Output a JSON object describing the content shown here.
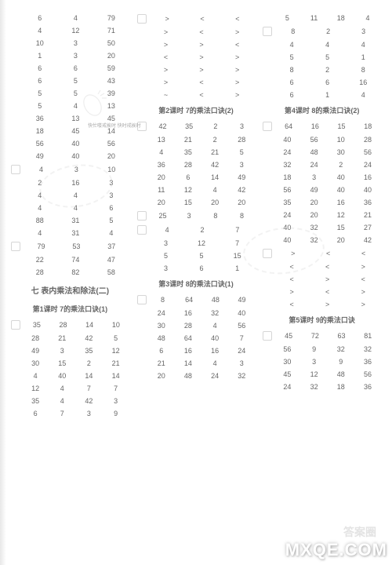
{
  "col1": {
    "rows": [
      [
        "6",
        "4",
        "79"
      ],
      [
        "4",
        "12",
        "71"
      ],
      [
        "10",
        "3",
        "50"
      ],
      [
        "1",
        "3",
        "20"
      ],
      [
        "6",
        "6",
        "59"
      ],
      [
        "6",
        "5",
        "43"
      ],
      [
        "5",
        "5",
        "39"
      ],
      [
        "5",
        "4",
        "13"
      ],
      [
        "36",
        "13",
        "45"
      ],
      [
        "18",
        "45",
        "14"
      ],
      [
        "56",
        "40",
        "56"
      ],
      [
        "49",
        "40",
        "20"
      ],
      [
        "4",
        "3",
        "10"
      ],
      [
        "2",
        "16",
        "3"
      ],
      [
        "4",
        "4",
        "3"
      ],
      [
        "4",
        "4",
        "6"
      ],
      [
        "88",
        "31",
        "5"
      ],
      [
        "4",
        "31",
        "4"
      ],
      [
        "79",
        "53",
        "37"
      ],
      [
        "22",
        "74",
        "47"
      ],
      [
        "28",
        "82",
        "58"
      ]
    ],
    "section": "七 表内乘法和除法(二)",
    "title": "第1课时 7的乘法口诀(1)",
    "rows2": [
      [
        "35",
        "28",
        "14",
        "10"
      ],
      [
        "28",
        "21",
        "42",
        "5"
      ],
      [
        "49",
        "3",
        "35",
        "12"
      ],
      [
        "30",
        "15",
        "2",
        "21"
      ],
      [
        "4",
        "40",
        "14",
        "14"
      ],
      [
        "12",
        "4",
        "7",
        "7"
      ],
      [
        "35",
        "4",
        "42",
        "3"
      ],
      [
        "6",
        "7",
        "3",
        "9"
      ]
    ]
  },
  "col2": {
    "sym1": [
      [
        ">",
        "<",
        "<"
      ],
      [
        ">",
        "<",
        ">"
      ],
      [
        ">",
        ">",
        "<"
      ],
      [
        "<",
        ">",
        ">"
      ],
      [
        ">",
        ">",
        ">"
      ],
      [
        ">",
        "<",
        ">"
      ],
      [
        "~",
        "<",
        ">"
      ]
    ],
    "title1": "第2课时 7的乘法口诀(2)",
    "rows1": [
      [
        "42",
        "35",
        "2",
        "3"
      ],
      [
        "13",
        "21",
        "2",
        "28"
      ],
      [
        "4",
        "35",
        "21",
        "5"
      ],
      [
        "36",
        "28",
        "42",
        "3"
      ],
      [
        "20",
        "6",
        "14",
        "49"
      ],
      [
        "11",
        "12",
        "4",
        "42"
      ],
      [
        "20",
        "15",
        "20",
        "20"
      ],
      [
        "25",
        "3",
        "8",
        "8"
      ],
      [
        "4",
        "2",
        "7"
      ],
      [
        "3",
        "12",
        "7"
      ],
      [
        "5",
        "5",
        "15"
      ],
      [
        "3",
        "6",
        "1"
      ]
    ],
    "title2": "第3课时 8的乘法口诀(1)",
    "rows2": [
      [
        "8",
        "64",
        "48",
        "49"
      ],
      [
        "24",
        "16",
        "32",
        "40"
      ],
      [
        "30",
        "28",
        "4",
        "56"
      ],
      [
        "48",
        "64",
        "40",
        "7"
      ],
      [
        "6",
        "16",
        "16",
        "24"
      ],
      [
        "21",
        "14",
        "4",
        "3"
      ],
      [
        "20",
        "48",
        "24",
        "32"
      ]
    ]
  },
  "col3": {
    "rows1": [
      [
        "5",
        "11",
        "18",
        "4"
      ],
      [
        "8",
        "2",
        "3"
      ],
      [
        "4",
        "4",
        "4"
      ],
      [
        "5",
        "5",
        "1"
      ],
      [
        "8",
        "2",
        "8"
      ],
      [
        "6",
        "6",
        "16"
      ],
      [
        "6",
        "1",
        "4"
      ]
    ],
    "title1": "第4课时 8的乘法口诀(2)",
    "rows2": [
      [
        "64",
        "16",
        "15",
        "18"
      ],
      [
        "40",
        "56",
        "10",
        "28"
      ],
      [
        "24",
        "48",
        "30",
        "56"
      ],
      [
        "32",
        "24",
        "2",
        "24"
      ],
      [
        "18",
        "3",
        "40",
        "16"
      ],
      [
        "56",
        "49",
        "40",
        "40"
      ],
      [
        "35",
        "20",
        "16",
        "36"
      ],
      [
        "24",
        "20",
        "12",
        "21"
      ],
      [
        "40",
        "32",
        "15",
        "27"
      ],
      [
        "40",
        "32",
        "20",
        "42"
      ]
    ],
    "sym1": [
      [
        ">",
        "<",
        "<"
      ],
      [
        "<",
        "<",
        ">"
      ],
      [
        "<",
        ">",
        "<"
      ],
      [
        ">",
        "<",
        ">"
      ],
      [
        "<",
        ">",
        ">"
      ]
    ],
    "title2": "第5课时 9的乘法口诀",
    "rows3": [
      [
        "45",
        "72",
        "63",
        "81"
      ],
      [
        "56",
        "9",
        "32",
        "32"
      ],
      [
        "30",
        "3",
        "9",
        "36"
      ],
      [
        "45",
        "12",
        "48",
        "56"
      ],
      [
        "24",
        "32",
        "18",
        "36"
      ]
    ]
  },
  "note": "快忙喽戒挨时\n快时戒挨时",
  "wm_text1": "答案圈",
  "wm_text2": "MXQE.COM"
}
